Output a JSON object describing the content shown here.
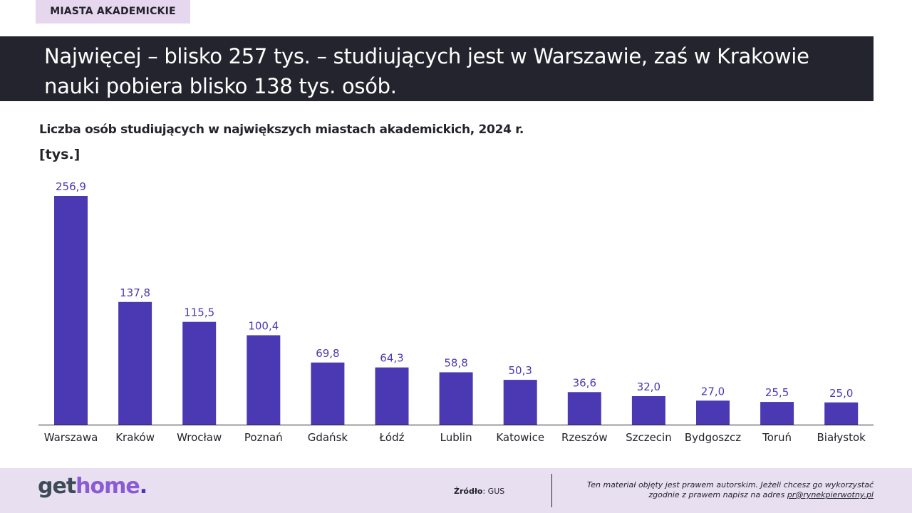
{
  "tag": "MIASTA AKADEMICKIE",
  "headline": "Najwięcej – blisko 257 tys. – studiujących jest w Warszawie, zaś w Krakowie nauki pobiera blisko 138 tys. osób.",
  "chart_data": {
    "type": "bar",
    "title": "Liczba osób studiujących w największych miastach akademickich, 2024 r.",
    "ylabel": "[tys.]",
    "xlabel": "",
    "categories": [
      "Warszawa",
      "Kraków",
      "Wrocław",
      "Poznań",
      "Gdańsk",
      "Łódź",
      "Lublin",
      "Katowice",
      "Rzeszów",
      "Szczecin",
      "Bydgoszcz",
      "Toruń",
      "Białystok"
    ],
    "values": [
      256.9,
      137.8,
      115.5,
      100.4,
      69.8,
      64.3,
      58.8,
      50.3,
      36.6,
      32.0,
      27.0,
      25.5,
      25.0
    ],
    "value_labels": [
      "256,9",
      "137,8",
      "115,5",
      "100,4",
      "69,8",
      "64,3",
      "58,8",
      "50,3",
      "36,6",
      "32,0",
      "27,0",
      "25,5",
      "25,0"
    ],
    "ylim": [
      0,
      256.9
    ],
    "grid": false,
    "legend": "none",
    "bar_color": "#4b38b3"
  },
  "footer": {
    "logo_get": "get",
    "logo_home": "home",
    "logo_dot": ".",
    "source_label": "Źródło",
    "source_value": ": GUS",
    "copyright_line1": "Ten materiał objęty jest prawem autorskim. Jeżeli chcesz go wykorzystać",
    "copyright_line2": "zgodnie z prawem napisz na adres ",
    "copyright_email": "pr@rynekpierwotny.pl"
  }
}
